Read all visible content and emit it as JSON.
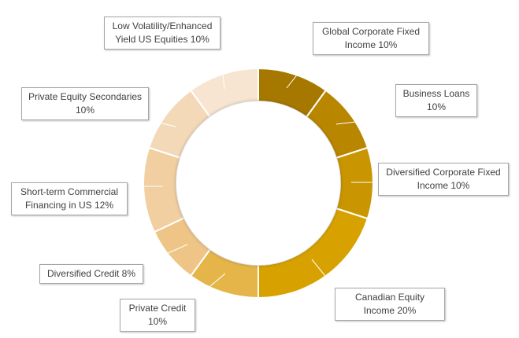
{
  "chart_data": {
    "type": "pie",
    "variant": "doughnut",
    "categories": [
      "Global Corporate Fixed Income",
      "Business Loans",
      "Diversified Corporate Fixed Income",
      "Canadian Equity Income",
      "Private Credit",
      "Diversified Credit",
      "Short-term Commercial Financing in US",
      "Private Equity Secondaries",
      "Low Volatility/Enhanced Yield US Equities"
    ],
    "values": [
      10,
      10,
      10,
      20,
      10,
      8,
      12,
      10,
      10
    ],
    "unit": "%",
    "colors": [
      "#A67800",
      "#B98600",
      "#C99500",
      "#D7A200",
      "#E5B54A",
      "#EEC586",
      "#F1CFA0",
      "#F4D9B8",
      "#F7E5D2"
    ],
    "labels": [
      {
        "line1": "Global Corporate Fixed",
        "line2": "Income 10%"
      },
      {
        "line1": "Business Loans",
        "line2": "10%"
      },
      {
        "line1": "Diversified Corporate Fixed",
        "line2": "Income 10%"
      },
      {
        "line1": "Canadian Equity",
        "line2": "Income 20%"
      },
      {
        "line1": "Private Credit",
        "line2": "10%"
      },
      {
        "line1": "Diversified Credit 8%",
        "line2": ""
      },
      {
        "line1": "Short-term Commercial",
        "line2": "Financing in US 12%"
      },
      {
        "line1": "Private Equity Secondaries",
        "line2": "10%"
      },
      {
        "line1": "Low Volatility/Enhanced",
        "line2": "Yield US Equities 10%"
      }
    ],
    "title": "",
    "legend": "none"
  }
}
